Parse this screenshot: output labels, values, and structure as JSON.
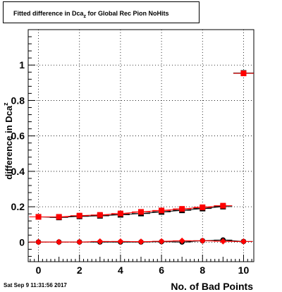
{
  "title": {
    "main": "Fitted difference in Dca",
    "sub": "z",
    "suffix": " for Global Rec Pion NoHits"
  },
  "timestamp": "Sat Sep  9 11:31:56 2017",
  "chart_data": {
    "type": "scatter",
    "xlabel": "No. of Bad Points",
    "ylabel_main": "difference in Dca",
    "ylabel_sub": "z",
    "xlim": [
      -0.5,
      10.5
    ],
    "ylim": [
      -0.11,
      1.2
    ],
    "xticks": [
      0,
      2,
      4,
      6,
      8,
      10
    ],
    "yticks": [
      0,
      0.2,
      0.4,
      0.6,
      0.8,
      1
    ],
    "ytick_labels": [
      "0",
      "0.2",
      "0.4",
      "0.6",
      "0.8",
      "1"
    ],
    "grid": true,
    "series": [
      {
        "marker": "square",
        "color": "#000000",
        "x": [
          0,
          1,
          2,
          3,
          4,
          5,
          6,
          7,
          8,
          9,
          10
        ],
        "y": [
          0.143,
          0.14,
          0.146,
          0.149,
          0.155,
          0.162,
          0.171,
          0.18,
          0.19,
          0.201,
          0.955
        ]
      },
      {
        "marker": "square",
        "color": "#ff0000",
        "x": [
          0,
          1,
          2,
          3,
          4,
          5,
          6,
          7,
          8,
          9,
          10
        ],
        "y": [
          0.143,
          0.143,
          0.15,
          0.154,
          0.162,
          0.171,
          0.179,
          0.188,
          0.197,
          0.206,
          0.953
        ]
      },
      {
        "marker": "circle",
        "color": "#000000",
        "x": [
          0,
          1,
          2,
          3,
          4,
          5,
          6,
          7,
          8,
          9,
          10
        ],
        "y": [
          0.001,
          0.001,
          0.001,
          0.001,
          0.001,
          0.001,
          0.003,
          0.001,
          0.008,
          0.012,
          0.004
        ]
      },
      {
        "marker": "diamond",
        "color": "#ff0000",
        "x": [
          0,
          1,
          2,
          3,
          4,
          5,
          6,
          7,
          8,
          9,
          10
        ],
        "y": [
          0.001,
          0.001,
          0.001,
          0.004,
          0.004,
          0.003,
          0.005,
          0.008,
          0.008,
          0.005,
          0.004
        ]
      }
    ]
  }
}
